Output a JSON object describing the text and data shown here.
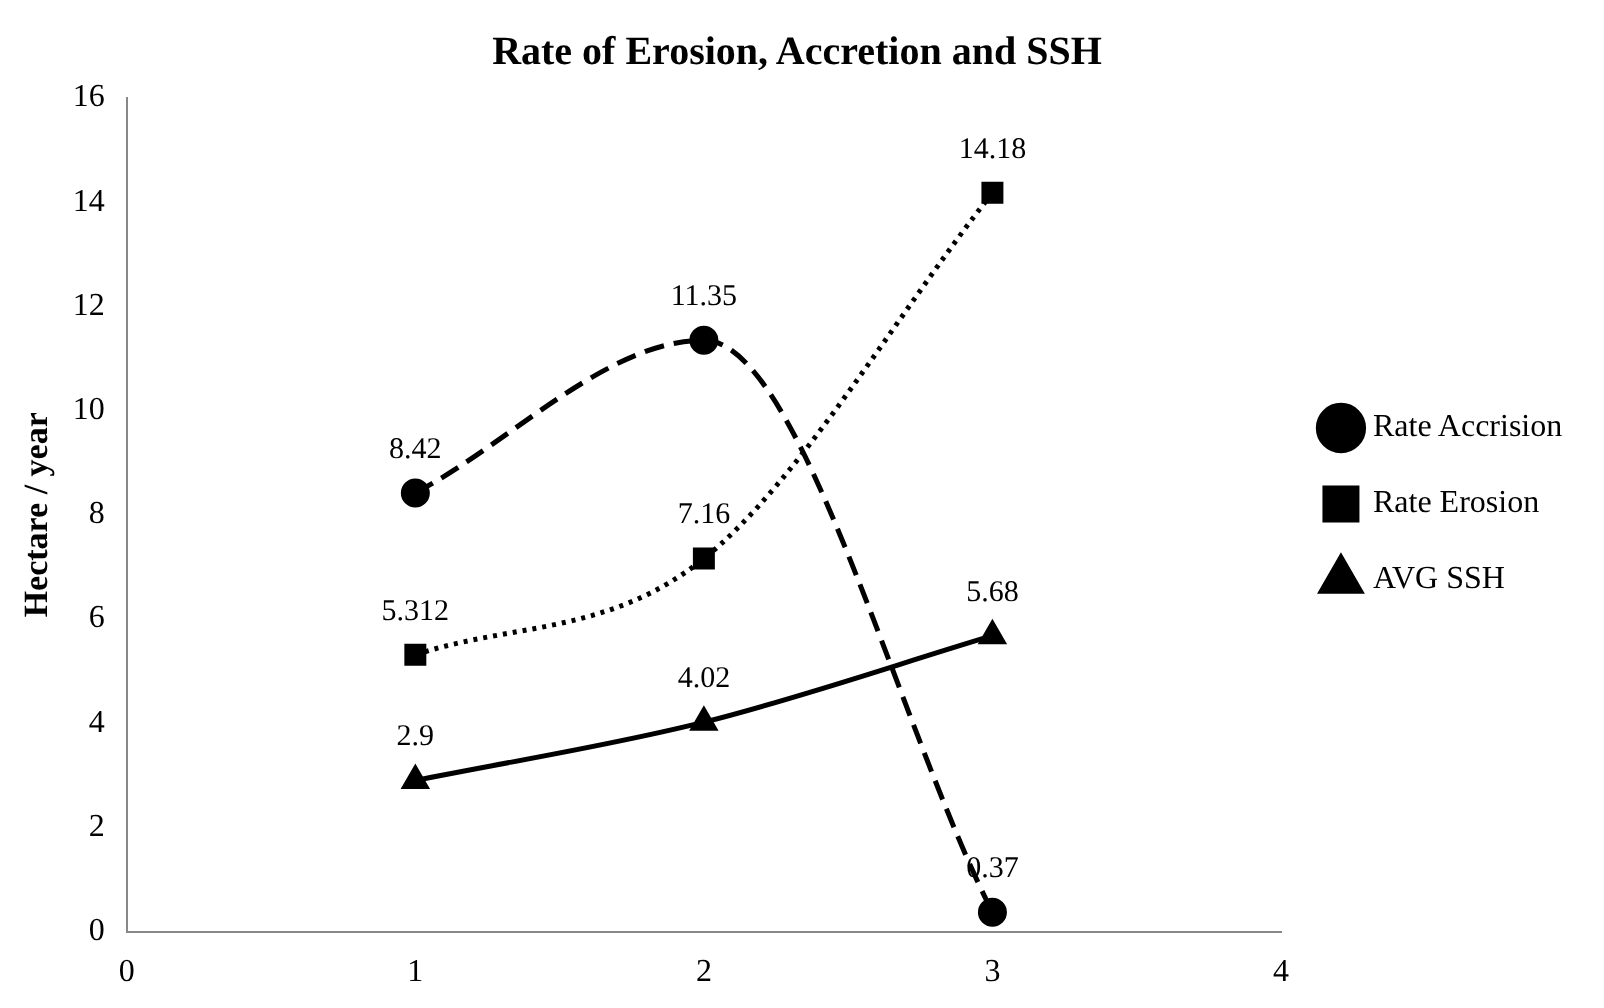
{
  "chart_data": {
    "type": "line",
    "title": "Rate of Erosion, Accretion and SSH",
    "ylabel": "Hectare / year",
    "x": [
      1,
      2,
      3
    ],
    "xlim": [
      0,
      4
    ],
    "xticks": [
      0,
      1,
      2,
      3,
      4
    ],
    "ylim": [
      0,
      16
    ],
    "yticks": [
      0,
      2,
      4,
      6,
      8,
      10,
      12,
      14,
      16
    ],
    "grid": false,
    "legend": "right",
    "data_labels": true,
    "series": [
      {
        "name": "Rate Accrision",
        "color": "#000000",
        "values": [
          8.42,
          11.35,
          0.37
        ],
        "marker": "circle",
        "line_style": "dashed"
      },
      {
        "name": "Rate Erosion",
        "color": "#000000",
        "values": [
          5.312,
          7.16,
          14.18
        ],
        "marker": "square",
        "line_style": "dotted"
      },
      {
        "name": "AVG SSH",
        "color": "#000000",
        "values": [
          2.9,
          4.02,
          5.68
        ],
        "marker": "triangle",
        "line_style": "solid"
      }
    ]
  }
}
